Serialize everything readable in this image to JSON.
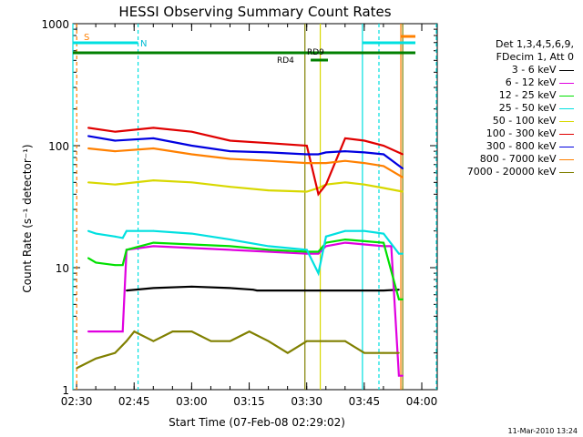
{
  "chart_data": {
    "type": "line",
    "title": "HESSI Observing Summary Count Rates",
    "xlabel": "Start Time (07-Feb-08 02:29:02)",
    "ylabel": "Count Rate (s⁻¹ detector⁻¹)",
    "x_ticks": [
      "02:30",
      "02:45",
      "03:00",
      "03:15",
      "03:30",
      "03:45",
      "04:00"
    ],
    "y_ticks": [
      "1",
      "10",
      "100",
      "1000"
    ],
    "y_scale": "log",
    "xlim": [
      0,
      95
    ],
    "ylim": [
      1,
      1000
    ],
    "x_unit": "minutes after 02:29:02",
    "legend_header": [
      "Det 1,3,4,5,6,9,",
      "FDecim 1, Att 0"
    ],
    "legend_placement": "right",
    "flag_labels": {
      "s": "S",
      "n": "N",
      "rd9": "RD9",
      "rd4": "RD4"
    },
    "footer": "11-Mar-2010 13:24",
    "series": [
      {
        "name": "3 - 6 keV",
        "color": "#000000",
        "x": [
          12,
          13,
          20,
          30,
          40,
          46,
          47,
          50,
          55,
          60,
          65,
          70,
          75,
          76,
          80,
          84,
          85
        ],
        "y": [
          null,
          6.5,
          6.8,
          7,
          6.8,
          6.6,
          6.5,
          6.5,
          6.5,
          6.5,
          6.5,
          6.5,
          6.5,
          6.5,
          6.5,
          6.6,
          null
        ]
      },
      {
        "name": "6 - 12 keV",
        "color": "#e000e0",
        "x": [
          3,
          4,
          10,
          12,
          13,
          20,
          30,
          40,
          50,
          60,
          63,
          65,
          70,
          75,
          80,
          82,
          84,
          85
        ],
        "y": [
          3,
          3,
          3,
          3,
          14,
          15,
          14.5,
          14,
          13.5,
          13,
          13,
          15,
          16,
          15.5,
          15,
          15,
          1.3,
          1.3
        ]
      },
      {
        "name": "12 - 25 keV",
        "color": "#00e000",
        "x": [
          3,
          5,
          10,
          12,
          13,
          20,
          30,
          40,
          50,
          60,
          63,
          65,
          70,
          75,
          80,
          84,
          85
        ],
        "y": [
          12,
          11,
          10.5,
          10.5,
          14,
          16,
          15.5,
          15,
          14,
          13.5,
          13.5,
          16,
          17,
          16.5,
          16,
          5.5,
          5.5
        ]
      },
      {
        "name": "25 - 50 keV",
        "color": "#00e0e0",
        "x": [
          3,
          5,
          10,
          12,
          13,
          20,
          30,
          40,
          50,
          60,
          63,
          65,
          70,
          75,
          80,
          84,
          85
        ],
        "y": [
          20,
          19,
          18,
          17.5,
          20,
          20,
          19,
          17,
          15,
          14,
          9,
          18,
          20,
          20,
          19,
          13,
          13
        ]
      },
      {
        "name": "50 - 100 keV",
        "color": "#d8d800",
        "x": [
          3,
          10,
          20,
          30,
          40,
          50,
          60,
          63,
          65,
          70,
          75,
          80,
          85
        ],
        "y": [
          50,
          48,
          52,
          50,
          46,
          43,
          42,
          45,
          48,
          50,
          48,
          45,
          42
        ]
      },
      {
        "name": "100 - 300 keV",
        "color": "#e00000",
        "x": [
          3,
          10,
          20,
          30,
          40,
          50,
          60,
          63,
          65,
          70,
          75,
          80,
          85
        ],
        "y": [
          140,
          130,
          140,
          130,
          110,
          105,
          100,
          40,
          48,
          115,
          110,
          100,
          85
        ]
      },
      {
        "name": "300 - 800 keV",
        "color": "#0000e0",
        "x": [
          3,
          10,
          20,
          30,
          40,
          50,
          60,
          63,
          65,
          70,
          75,
          80,
          85
        ],
        "y": [
          120,
          110,
          115,
          100,
          90,
          88,
          85,
          85,
          88,
          90,
          88,
          85,
          65
        ]
      },
      {
        "name": "800 - 7000 keV",
        "color": "#ff8000",
        "x": [
          3,
          10,
          20,
          30,
          40,
          50,
          60,
          63,
          65,
          70,
          75,
          80,
          85
        ],
        "y": [
          95,
          90,
          95,
          85,
          78,
          75,
          72,
          72,
          72,
          75,
          72,
          68,
          55
        ]
      },
      {
        "name": "7000 - 20000 keV",
        "color": "#808000",
        "x": [
          0,
          5,
          10,
          13,
          15,
          20,
          25,
          30,
          35,
          40,
          45,
          50,
          55,
          60,
          65,
          70,
          75,
          80,
          84
        ],
        "y": [
          1.5,
          1.8,
          2,
          2.5,
          3,
          2.5,
          3,
          3,
          2.5,
          2.5,
          3,
          2.5,
          2,
          2.5,
          2.5,
          2.5,
          2,
          2,
          2
        ]
      }
    ]
  }
}
